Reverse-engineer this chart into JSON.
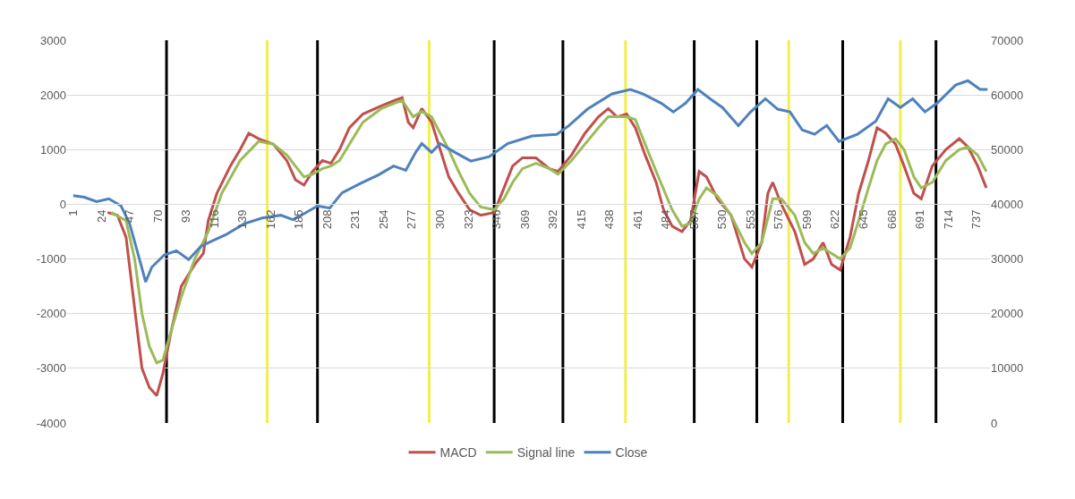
{
  "chart_data": {
    "type": "line",
    "xlim": [
      -4,
      748
    ],
    "xticks": [
      1,
      24,
      47,
      70,
      93,
      116,
      139,
      162,
      185,
      208,
      231,
      254,
      277,
      300,
      323,
      346,
      369,
      392,
      415,
      438,
      461,
      484,
      507,
      530,
      553,
      576,
      599,
      622,
      645,
      668,
      691,
      714,
      737
    ],
    "ylim": [
      -4000,
      3000
    ],
    "yticks": [
      -4000,
      -3000,
      -2000,
      -1000,
      0,
      1000,
      2000,
      3000
    ],
    "y2lim": [
      0,
      70000
    ],
    "y2ticks": [
      0,
      10000,
      20000,
      30000,
      40000,
      50000,
      60000,
      70000
    ],
    "grid": "y",
    "legend": "bottom",
    "series": [
      {
        "name": "MACD",
        "color": "#c0504d",
        "x": [
          29,
          37,
          44,
          51,
          57,
          63,
          69,
          74,
          81,
          89,
          100,
          107,
          111,
          118,
          129,
          137,
          144,
          152,
          164,
          175,
          182,
          189,
          196,
          204,
          211,
          218,
          226,
          237,
          252,
          263,
          269,
          274,
          278,
          285,
          293,
          300,
          307,
          315,
          324,
          333,
          344,
          352,
          359,
          367,
          378,
          389,
          396,
          407,
          418,
          429,
          437,
          444,
          452,
          459,
          467,
          476,
          482,
          489,
          497,
          504,
          511,
          517,
          526,
          537,
          548,
          554,
          562,
          567,
          571,
          578,
          589,
          597,
          604,
          612,
          619,
          626,
          634,
          641,
          649,
          656,
          663,
          671,
          678,
          686,
          692,
          701,
          712,
          723,
          730,
          738,
          745
        ],
        "values": [
          -150,
          -200,
          -600,
          -1900,
          -3000,
          -3350,
          -3500,
          -3100,
          -2300,
          -1500,
          -1100,
          -900,
          -300,
          200,
          700,
          1000,
          1300,
          1200,
          1100,
          800,
          450,
          350,
          600,
          800,
          750,
          1000,
          1400,
          1650,
          1800,
          1900,
          1950,
          1500,
          1400,
          1750,
          1500,
          1000,
          500,
          200,
          -100,
          -200,
          -150,
          300,
          700,
          850,
          850,
          650,
          600,
          900,
          1300,
          1600,
          1750,
          1600,
          1650,
          1400,
          900,
          400,
          -100,
          -400,
          -500,
          -300,
          600,
          500,
          100,
          -200,
          -1000,
          -1150,
          -700,
          200,
          400,
          0,
          -500,
          -1100,
          -1000,
          -700,
          -1100,
          -1200,
          -600,
          200,
          800,
          1400,
          1300,
          1100,
          700,
          200,
          100,
          700,
          1000,
          1200,
          1050,
          700,
          300
        ]
      },
      {
        "name": "Signal line",
        "color": "#9bbb59",
        "x": [
          32,
          44,
          51,
          57,
          63,
          69,
          74,
          81,
          89,
          100,
          111,
          122,
          137,
          152,
          164,
          175,
          182,
          189,
          196,
          204,
          211,
          218,
          226,
          237,
          252,
          263,
          269,
          278,
          285,
          293,
          300,
          307,
          315,
          324,
          333,
          344,
          352,
          359,
          367,
          378,
          389,
          396,
          407,
          418,
          429,
          437,
          452,
          459,
          467,
          476,
          489,
          497,
          504,
          511,
          517,
          526,
          537,
          548,
          554,
          562,
          571,
          578,
          589,
          597,
          604,
          612,
          619,
          626,
          634,
          641,
          649,
          656,
          663,
          671,
          678,
          686,
          692,
          701,
          712,
          723,
          730,
          738,
          745
        ],
        "values": [
          -150,
          -300,
          -1000,
          -2000,
          -2600,
          -2900,
          -2850,
          -2300,
          -1700,
          -1000,
          -500,
          200,
          800,
          1150,
          1100,
          900,
          700,
          500,
          550,
          650,
          700,
          800,
          1100,
          1500,
          1750,
          1850,
          1900,
          1600,
          1700,
          1600,
          1300,
          1000,
          600,
          200,
          -50,
          -100,
          100,
          400,
          650,
          750,
          650,
          550,
          800,
          1100,
          1400,
          1600,
          1600,
          1550,
          1100,
          600,
          -100,
          -400,
          -350,
          100,
          300,
          150,
          -200,
          -700,
          -900,
          -700,
          100,
          100,
          -200,
          -700,
          -900,
          -800,
          -900,
          -1000,
          -800,
          -300,
          300,
          800,
          1100,
          1200,
          1000,
          500,
          300,
          400,
          800,
          1000,
          1050,
          900,
          600
        ]
      },
      {
        "name": "Close",
        "color": "#4f81bd",
        "axis": "y2",
        "x": [
          1,
          10,
          20,
          30,
          40,
          47,
          55,
          60,
          65,
          75,
          85,
          95,
          105,
          115,
          125,
          140,
          155,
          170,
          180,
          190,
          200,
          210,
          220,
          235,
          250,
          262,
          272,
          280,
          285,
          293,
          300,
          312,
          325,
          340,
          355,
          375,
          395,
          405,
          420,
          440,
          455,
          465,
          480,
          490,
          500,
          510,
          520,
          530,
          543,
          553,
          565,
          575,
          585,
          595,
          605,
          615,
          625,
          640,
          655,
          665,
          675,
          685,
          695,
          705,
          720,
          730,
          740,
          746
        ],
        "values": [
          41600,
          41300,
          40500,
          41000,
          39700,
          36400,
          29900,
          25800,
          28500,
          30700,
          31500,
          29900,
          32300,
          33400,
          34400,
          36400,
          37500,
          38000,
          37200,
          38400,
          39700,
          39300,
          42100,
          43800,
          45400,
          47000,
          46200,
          49500,
          51100,
          49500,
          51100,
          49500,
          47900,
          48700,
          51100,
          52500,
          52800,
          54400,
          57400,
          60200,
          61000,
          60200,
          58500,
          56900,
          58500,
          61000,
          59300,
          57700,
          54400,
          56900,
          59300,
          57400,
          56900,
          53600,
          52800,
          54400,
          51500,
          52800,
          55200,
          59300,
          57700,
          59300,
          56900,
          58500,
          61800,
          62600,
          61000,
          61000
        ]
      }
    ],
    "ref_lines": [
      {
        "axis": "x",
        "value": 77,
        "color": "#000000"
      },
      {
        "axis": "x",
        "value": 159,
        "color": "#f2ee50"
      },
      {
        "axis": "x",
        "value": 200,
        "color": "#000000"
      },
      {
        "axis": "x",
        "value": 291,
        "color": "#f2ee50"
      },
      {
        "axis": "x",
        "value": 344,
        "color": "#000000"
      },
      {
        "axis": "x",
        "value": 400,
        "color": "#000000"
      },
      {
        "axis": "x",
        "value": 451,
        "color": "#f2ee50"
      },
      {
        "axis": "x",
        "value": 507,
        "color": "#000000"
      },
      {
        "axis": "x",
        "value": 558,
        "color": "#000000"
      },
      {
        "axis": "x",
        "value": 584,
        "color": "#f2ee50"
      },
      {
        "axis": "x",
        "value": 628,
        "color": "#000000"
      },
      {
        "axis": "x",
        "value": 675,
        "color": "#f2ee50"
      },
      {
        "axis": "x",
        "value": 704,
        "color": "#000000"
      }
    ]
  }
}
